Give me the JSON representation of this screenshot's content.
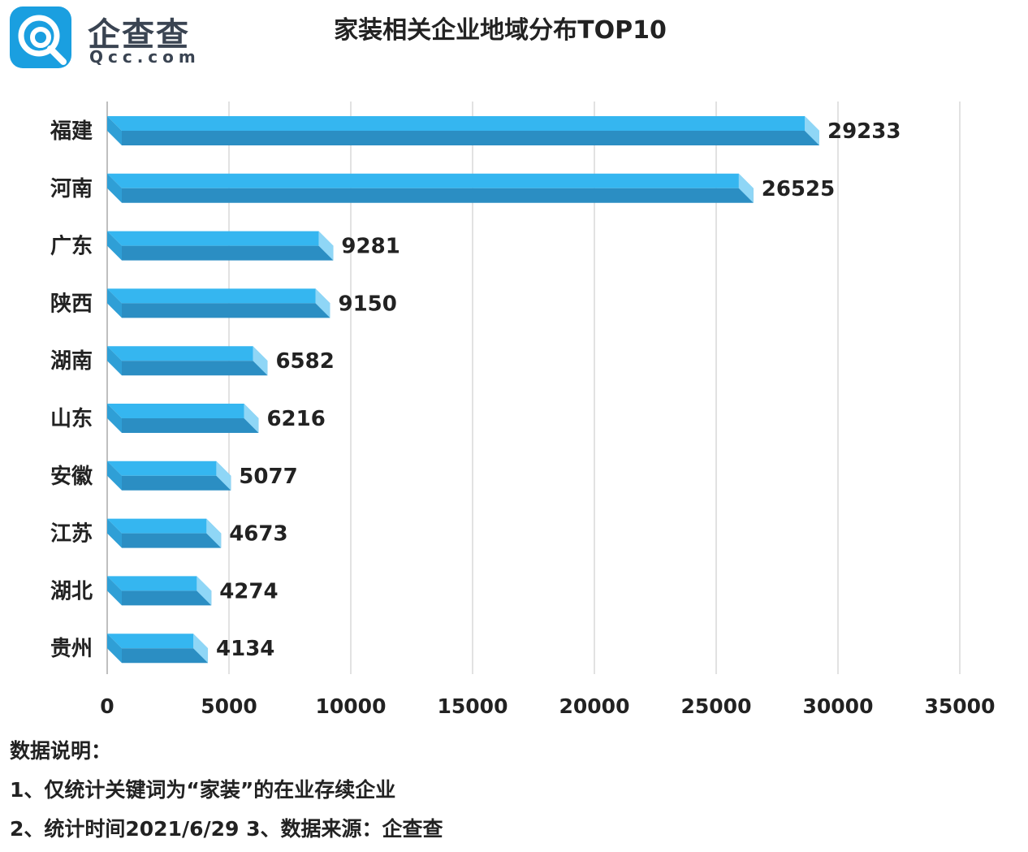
{
  "brand": {
    "name_cn": "企查查",
    "domain": "Qcc.com",
    "accent": "#1a9fe0"
  },
  "chart_data": {
    "type": "bar",
    "orientation": "horizontal",
    "title": "家装相关企业地域分布TOP10",
    "categories": [
      "福建",
      "河南",
      "广东",
      "陕西",
      "湖南",
      "山东",
      "安徽",
      "江苏",
      "湖北",
      "贵州"
    ],
    "values": [
      29233,
      26525,
      9281,
      9150,
      6582,
      6216,
      5077,
      4673,
      4274,
      4134
    ],
    "x_ticks": [
      "0",
      "5000",
      "10000",
      "15000",
      "20000",
      "25000",
      "30000",
      "35000"
    ],
    "xlim": [
      0,
      35000
    ],
    "grid": true,
    "bar_color_top": "#35b6f0",
    "bar_color_bottom": "#2b8ec3",
    "data_labels": true
  },
  "notes": {
    "heading": "数据说明：",
    "line1": "1、仅统计关键词为“家装”的在业存续企业",
    "line2": "2、统计时间2021/6/29   3、数据来源：企查查"
  }
}
